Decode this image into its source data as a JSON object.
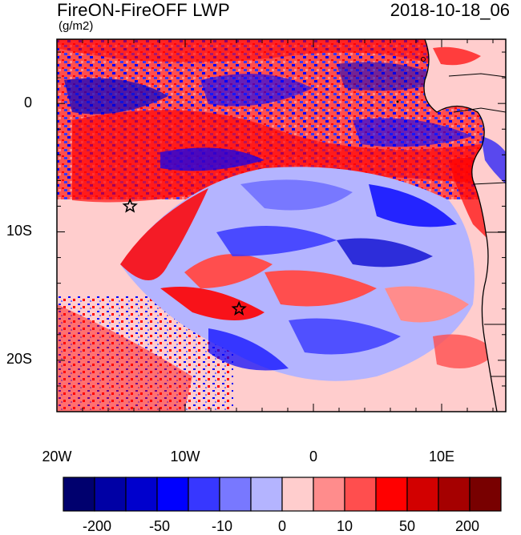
{
  "title": "FireON-FireOFF LWP",
  "date_label": "2018-10-18_06",
  "units": "(g/m2)",
  "y_axis_labels": [
    "0",
    "10S",
    "20S"
  ],
  "x_axis_labels": [
    "20W",
    "10W",
    "0",
    "10E"
  ],
  "colorbar": {
    "colors": [
      "#00006e",
      "#0000a5",
      "#0000cd",
      "#0000ff",
      "#3737ff",
      "#7878ff",
      "#b4b4ff",
      "#ffcdcd",
      "#ff8c8c",
      "#ff4e4e",
      "#ff0000",
      "#d20000",
      "#a50000",
      "#780000"
    ],
    "labels": [
      "-200",
      "-50",
      "-10",
      "0",
      "10",
      "50",
      "200"
    ]
  },
  "markers": [
    {
      "name": "star-marker",
      "lon": -14.3,
      "lat": -8.0
    },
    {
      "name": "star-marker",
      "lon": -5.8,
      "lat": -16.0
    }
  ],
  "map_extent": {
    "lon": [
      -20,
      15
    ],
    "lat": [
      -24,
      5
    ]
  },
  "colors": {
    "land": "#ffcdcd",
    "coast": "#000000"
  }
}
